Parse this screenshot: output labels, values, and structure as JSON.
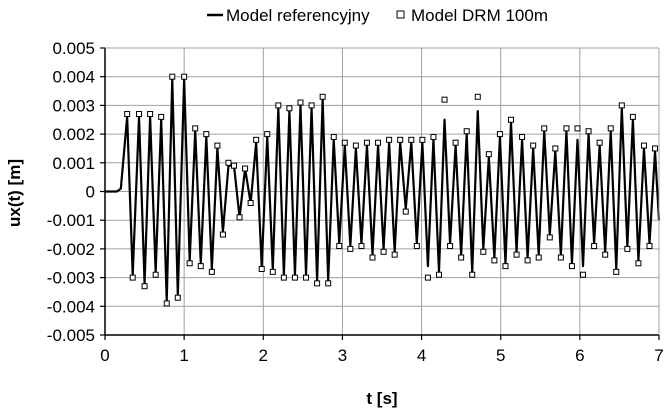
{
  "chart_data": {
    "type": "line",
    "title": "",
    "xlabel": "t [s]",
    "ylabel": "ux(t) [m]",
    "xlim": [
      0,
      7
    ],
    "ylim": [
      -0.005,
      0.005
    ],
    "x_ticks": [
      0,
      1,
      2,
      3,
      4,
      5,
      6,
      7
    ],
    "y_ticks": [
      0.005,
      0.004,
      0.003,
      0.002,
      0.001,
      0,
      -0.001,
      -0.002,
      -0.003,
      -0.004,
      -0.005
    ],
    "x_tick_labels": [
      "0",
      "1",
      "2",
      "3",
      "4",
      "5",
      "6",
      "7"
    ],
    "y_tick_labels": [
      "0.005",
      "0.004",
      "0.003",
      "0.002",
      "0.001",
      "0",
      "-0.001",
      "-0.002",
      "-0.003",
      "-0.004",
      "-0.005"
    ],
    "grid": true,
    "legend_position": "top",
    "series": [
      {
        "name": "Model referencyjny",
        "style": "line",
        "color": "#000000",
        "x": [
          0,
          0.15,
          0.2,
          0.28,
          0.35,
          0.43,
          0.5,
          0.57,
          0.64,
          0.71,
          0.78,
          0.85,
          0.92,
          1.0,
          1.07,
          1.14,
          1.21,
          1.28,
          1.35,
          1.42,
          1.49,
          1.56,
          1.63,
          1.7,
          1.77,
          1.84,
          1.91,
          1.98,
          2.05,
          2.12,
          2.19,
          2.26,
          2.33,
          2.4,
          2.47,
          2.54,
          2.61,
          2.68,
          2.75,
          2.82,
          2.89,
          2.96,
          3.03,
          3.1,
          3.17,
          3.24,
          3.31,
          3.38,
          3.45,
          3.52,
          3.59,
          3.66,
          3.73,
          3.8,
          3.87,
          3.94,
          4.01,
          4.08,
          4.15,
          4.22,
          4.29,
          4.36,
          4.43,
          4.5,
          4.57,
          4.64,
          4.71,
          4.78,
          4.85,
          4.92,
          4.99,
          5.06,
          5.13,
          5.2,
          5.27,
          5.34,
          5.41,
          5.48,
          5.55,
          5.62,
          5.69,
          5.76,
          5.83,
          5.9,
          5.97,
          6.04,
          6.11,
          6.18,
          6.25,
          6.32,
          6.39,
          6.46,
          6.53,
          6.6,
          6.67,
          6.74,
          6.81,
          6.88,
          6.95,
          7.0
        ],
        "y": [
          0,
          0,
          0.0001,
          0.0026,
          -0.0029,
          0.0026,
          -0.0032,
          0.0026,
          -0.0028,
          0.0025,
          -0.0038,
          0.0039,
          -0.0036,
          0.0039,
          -0.0024,
          0.0021,
          -0.0025,
          0.0019,
          -0.0027,
          0.0015,
          -0.0014,
          0.0009,
          0.0009,
          -0.0009,
          0.0008,
          -0.0004,
          0.0017,
          -0.0026,
          0.0019,
          -0.0027,
          0.0029,
          -0.0029,
          0.0028,
          -0.0029,
          0.003,
          -0.0029,
          0.0029,
          -0.0031,
          0.0032,
          -0.0031,
          0.0018,
          -0.0018,
          0.0016,
          -0.0019,
          0.0015,
          -0.0018,
          0.0016,
          -0.0022,
          0.0016,
          -0.002,
          0.0017,
          -0.0021,
          0.0017,
          -0.0006,
          0.0017,
          -0.0018,
          0.0017,
          -0.0026,
          0.0018,
          -0.0028,
          0.0025,
          -0.0018,
          0.0016,
          -0.0022,
          0.002,
          -0.0028,
          0.0028,
          -0.002,
          0.0012,
          -0.0023,
          0.0019,
          -0.0025,
          0.0024,
          -0.0021,
          0.0018,
          -0.0023,
          0.0015,
          -0.0022,
          0.0021,
          -0.0015,
          0.0014,
          -0.0022,
          0.0021,
          -0.0025,
          0.0018,
          -0.0026,
          0.002,
          -0.0018,
          0.0016,
          -0.0021,
          0.0021,
          -0.0027,
          0.0029,
          -0.0019,
          0.0025,
          -0.0024,
          0.0015,
          -0.0018,
          0.0014,
          -0.001
        ]
      },
      {
        "name": "Model DRM 100m",
        "style": "markers",
        "color": "#000000",
        "x": [
          0.28,
          0.35,
          0.43,
          0.5,
          0.57,
          0.64,
          0.71,
          0.78,
          0.85,
          0.92,
          1.0,
          1.07,
          1.14,
          1.21,
          1.28,
          1.35,
          1.42,
          1.49,
          1.56,
          1.63,
          1.7,
          1.77,
          1.84,
          1.91,
          1.98,
          2.05,
          2.12,
          2.19,
          2.26,
          2.33,
          2.4,
          2.47,
          2.54,
          2.61,
          2.68,
          2.75,
          2.82,
          2.89,
          2.96,
          3.03,
          3.1,
          3.17,
          3.24,
          3.31,
          3.38,
          3.45,
          3.52,
          3.59,
          3.66,
          3.73,
          3.8,
          3.87,
          3.94,
          4.01,
          4.08,
          4.15,
          4.22,
          4.29,
          4.36,
          4.43,
          4.5,
          4.57,
          4.64,
          4.71,
          4.78,
          4.85,
          4.92,
          4.99,
          5.06,
          5.13,
          5.2,
          5.27,
          5.34,
          5.41,
          5.48,
          5.55,
          5.62,
          5.69,
          5.76,
          5.83,
          5.9,
          5.97,
          6.04,
          6.11,
          6.18,
          6.25,
          6.32,
          6.39,
          6.46,
          6.53,
          6.6,
          6.67,
          6.74,
          6.81,
          6.88,
          6.95
        ],
        "y": [
          0.0027,
          -0.003,
          0.0027,
          -0.0033,
          0.0027,
          -0.0029,
          0.0026,
          -0.0039,
          0.004,
          -0.0037,
          0.004,
          -0.0025,
          0.0022,
          -0.0026,
          0.002,
          -0.0028,
          0.0016,
          -0.0015,
          0.001,
          0.0009,
          -0.0009,
          0.0008,
          -0.0004,
          0.0018,
          -0.0027,
          0.002,
          -0.0028,
          0.003,
          -0.003,
          0.0029,
          -0.003,
          0.0031,
          -0.003,
          0.003,
          -0.0032,
          0.0033,
          -0.0032,
          0.0019,
          -0.0019,
          0.0017,
          -0.002,
          0.0016,
          -0.0019,
          0.0017,
          -0.0023,
          0.0017,
          -0.0021,
          0.0018,
          -0.0022,
          0.0018,
          -0.0007,
          0.0018,
          -0.0019,
          0.0018,
          -0.003,
          0.0019,
          -0.0029,
          0.0032,
          -0.0019,
          0.0017,
          -0.0023,
          0.0021,
          -0.0029,
          0.0033,
          -0.0021,
          0.0013,
          -0.0024,
          0.002,
          -0.0026,
          0.0025,
          -0.0022,
          0.0019,
          -0.0024,
          0.0016,
          -0.0023,
          0.0022,
          -0.0016,
          0.0015,
          -0.0023,
          0.0022,
          -0.0026,
          0.0022,
          -0.0029,
          0.0021,
          -0.0019,
          0.0017,
          -0.0022,
          0.0022,
          -0.0028,
          0.003,
          -0.002,
          0.0026,
          -0.0025,
          0.0016,
          -0.0019,
          0.0015
        ]
      }
    ]
  }
}
